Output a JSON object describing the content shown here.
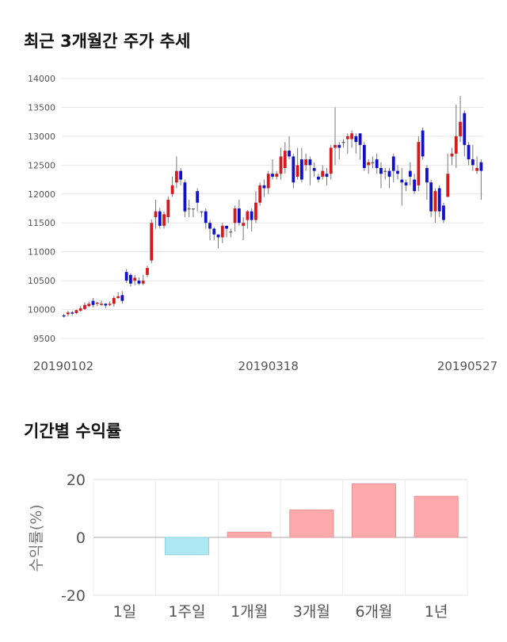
{
  "titles": {
    "price_trend": "최근 3개월간 주가 추세",
    "period_returns": "기간별 수익률"
  },
  "colors": {
    "up": "#d7191c",
    "down": "#1010cc",
    "positive_bar": "#ffaaaa",
    "negative_bar": "#aee8f2",
    "grid": "#e6e6e6"
  },
  "chart_data": [
    {
      "type": "candlestick",
      "title": "최근 3개월간 주가 추세",
      "ylim": [
        9500,
        14000
      ],
      "yticks": [
        9500,
        10000,
        10500,
        11000,
        11500,
        12000,
        12500,
        13000,
        13500,
        14000
      ],
      "xtick_labels": [
        "20190102",
        "20190318",
        "20190527"
      ],
      "xtick_index": [
        0,
        49,
        98
      ],
      "candles": [
        [
          9900,
          9880,
          9930,
          9860
        ],
        [
          9920,
          9950,
          9980,
          9880
        ],
        [
          9950,
          9930,
          9980,
          9900
        ],
        [
          9940,
          9990,
          10000,
          9920
        ],
        [
          9980,
          10020,
          10060,
          9960
        ],
        [
          10010,
          10080,
          10120,
          9990
        ],
        [
          10060,
          10100,
          10140,
          10040
        ],
        [
          10150,
          10080,
          10200,
          10040
        ],
        [
          10100,
          10120,
          10130,
          10060
        ],
        [
          10080,
          10100,
          10160,
          10060
        ],
        [
          10100,
          10070,
          10110,
          10020
        ],
        [
          10080,
          10100,
          10140,
          10060
        ],
        [
          10100,
          10200,
          10240,
          10050
        ],
        [
          10200,
          10230,
          10300,
          10180
        ],
        [
          10250,
          10150,
          10320,
          10100
        ],
        [
          10650,
          10500,
          10700,
          10460
        ],
        [
          10600,
          10450,
          10620,
          10400
        ],
        [
          10500,
          10550,
          10600,
          10420
        ],
        [
          10500,
          10450,
          10560,
          10420
        ],
        [
          10450,
          10500,
          10600,
          10420
        ],
        [
          10600,
          10720,
          10760,
          10560
        ],
        [
          10850,
          11500,
          11560,
          10800
        ],
        [
          11600,
          11700,
          11900,
          11400
        ],
        [
          11700,
          11450,
          11760,
          11400
        ],
        [
          11450,
          11650,
          11700,
          11400
        ],
        [
          11600,
          11900,
          11960,
          11500
        ],
        [
          12000,
          12150,
          12300,
          11950
        ],
        [
          12200,
          12400,
          12650,
          12100
        ],
        [
          12400,
          12250,
          12450,
          12150
        ],
        [
          12200,
          11700,
          12250,
          11600
        ],
        [
          11750,
          11750,
          11900,
          11600
        ],
        [
          11750,
          11750,
          11750,
          11600
        ],
        [
          12050,
          11850,
          12100,
          11700
        ],
        [
          11700,
          11700,
          11700,
          11600
        ],
        [
          11700,
          11500,
          11750,
          11400
        ],
        [
          11500,
          11400,
          11550,
          11200
        ],
        [
          11400,
          11300,
          11420,
          11200
        ],
        [
          11300,
          11250,
          11300,
          11060
        ],
        [
          11250,
          11450,
          11500,
          11150
        ],
        [
          11450,
          11400,
          11450,
          11250
        ],
        [
          11350,
          11350,
          11400,
          11250
        ],
        [
          11500,
          11750,
          11800,
          11350
        ],
        [
          11750,
          11500,
          11900,
          11450
        ],
        [
          11450,
          11500,
          11600,
          11200
        ],
        [
          11550,
          11700,
          11720,
          11400
        ],
        [
          11700,
          11550,
          11750,
          11350
        ],
        [
          11550,
          11850,
          12050,
          11500
        ],
        [
          11850,
          12150,
          12200,
          11800
        ],
        [
          12150,
          12100,
          12250,
          11950
        ],
        [
          12100,
          12350,
          12400,
          12000
        ],
        [
          12350,
          12300,
          12600,
          12250
        ],
        [
          12300,
          12350,
          12400,
          12250
        ],
        [
          12350,
          12650,
          12800,
          12250
        ],
        [
          12450,
          12750,
          12900,
          12350
        ],
        [
          12750,
          12650,
          13000,
          12600
        ],
        [
          12650,
          12200,
          12700,
          12100
        ],
        [
          12300,
          12500,
          12800,
          12250
        ],
        [
          12600,
          12250,
          12800,
          12200
        ],
        [
          12500,
          12600,
          12700,
          12400
        ],
        [
          12600,
          12500,
          12650,
          12150
        ],
        [
          12450,
          12400,
          12550,
          12300
        ],
        [
          12300,
          12250,
          12350,
          12200
        ],
        [
          12300,
          12400,
          12500,
          12250
        ],
        [
          12350,
          12300,
          12450,
          12150
        ],
        [
          12350,
          12800,
          12850,
          12250
        ],
        [
          12800,
          12850,
          13500,
          12500
        ],
        [
          12850,
          12800,
          12900,
          12600
        ],
        [
          12900,
          12900,
          12950,
          12800
        ],
        [
          12950,
          13000,
          13050,
          12700
        ],
        [
          12950,
          13050,
          13100,
          12800
        ],
        [
          13000,
          12900,
          13050,
          12700
        ],
        [
          13050,
          12850,
          13050,
          12600
        ],
        [
          12850,
          12450,
          12900,
          12400
        ],
        [
          12500,
          12550,
          12600,
          12350
        ],
        [
          12550,
          12550,
          12650,
          12450
        ],
        [
          12600,
          12450,
          12700,
          12350
        ],
        [
          12450,
          12350,
          12550,
          12100
        ],
        [
          12400,
          12400,
          12450,
          12250
        ],
        [
          12400,
          12300,
          12450,
          12100
        ],
        [
          12650,
          12400,
          12700,
          12200
        ],
        [
          12400,
          12350,
          12500,
          12250
        ],
        [
          12250,
          12200,
          12450,
          11800
        ],
        [
          12200,
          12150,
          12250,
          12050
        ],
        [
          12400,
          12300,
          12550,
          12150
        ],
        [
          12250,
          12050,
          12350,
          12000
        ],
        [
          12150,
          12900,
          13000,
          12050
        ],
        [
          13100,
          12650,
          13150,
          12600
        ],
        [
          12450,
          12200,
          12500,
          11900
        ],
        [
          12200,
          11700,
          12250,
          11600
        ],
        [
          11700,
          12050,
          12100,
          11500
        ],
        [
          12100,
          11700,
          12150,
          11600
        ],
        [
          11800,
          11550,
          11850,
          11500
        ],
        [
          11950,
          12350,
          12700,
          11950
        ],
        [
          12650,
          12700,
          12800,
          12500
        ],
        [
          12700,
          13000,
          13550,
          12450
        ],
        [
          13000,
          13250,
          13700,
          12900
        ],
        [
          13400,
          12850,
          13450,
          12650
        ],
        [
          12850,
          12600,
          12900,
          12500
        ],
        [
          12600,
          12500,
          12850,
          12400
        ],
        [
          12400,
          12450,
          12650,
          12350
        ],
        [
          12550,
          12400,
          12600,
          11900
        ]
      ]
    },
    {
      "type": "bar",
      "title": "기간별 수익률",
      "ylabel": "수익률(%)",
      "ylim": [
        -20,
        20
      ],
      "yticks": [
        -20,
        0,
        20
      ],
      "categories": [
        "1일",
        "1주일",
        "1개월",
        "3개월",
        "6개월",
        "1년"
      ],
      "values": [
        0,
        -6.0,
        1.8,
        9.5,
        18.5,
        14.2
      ]
    }
  ]
}
